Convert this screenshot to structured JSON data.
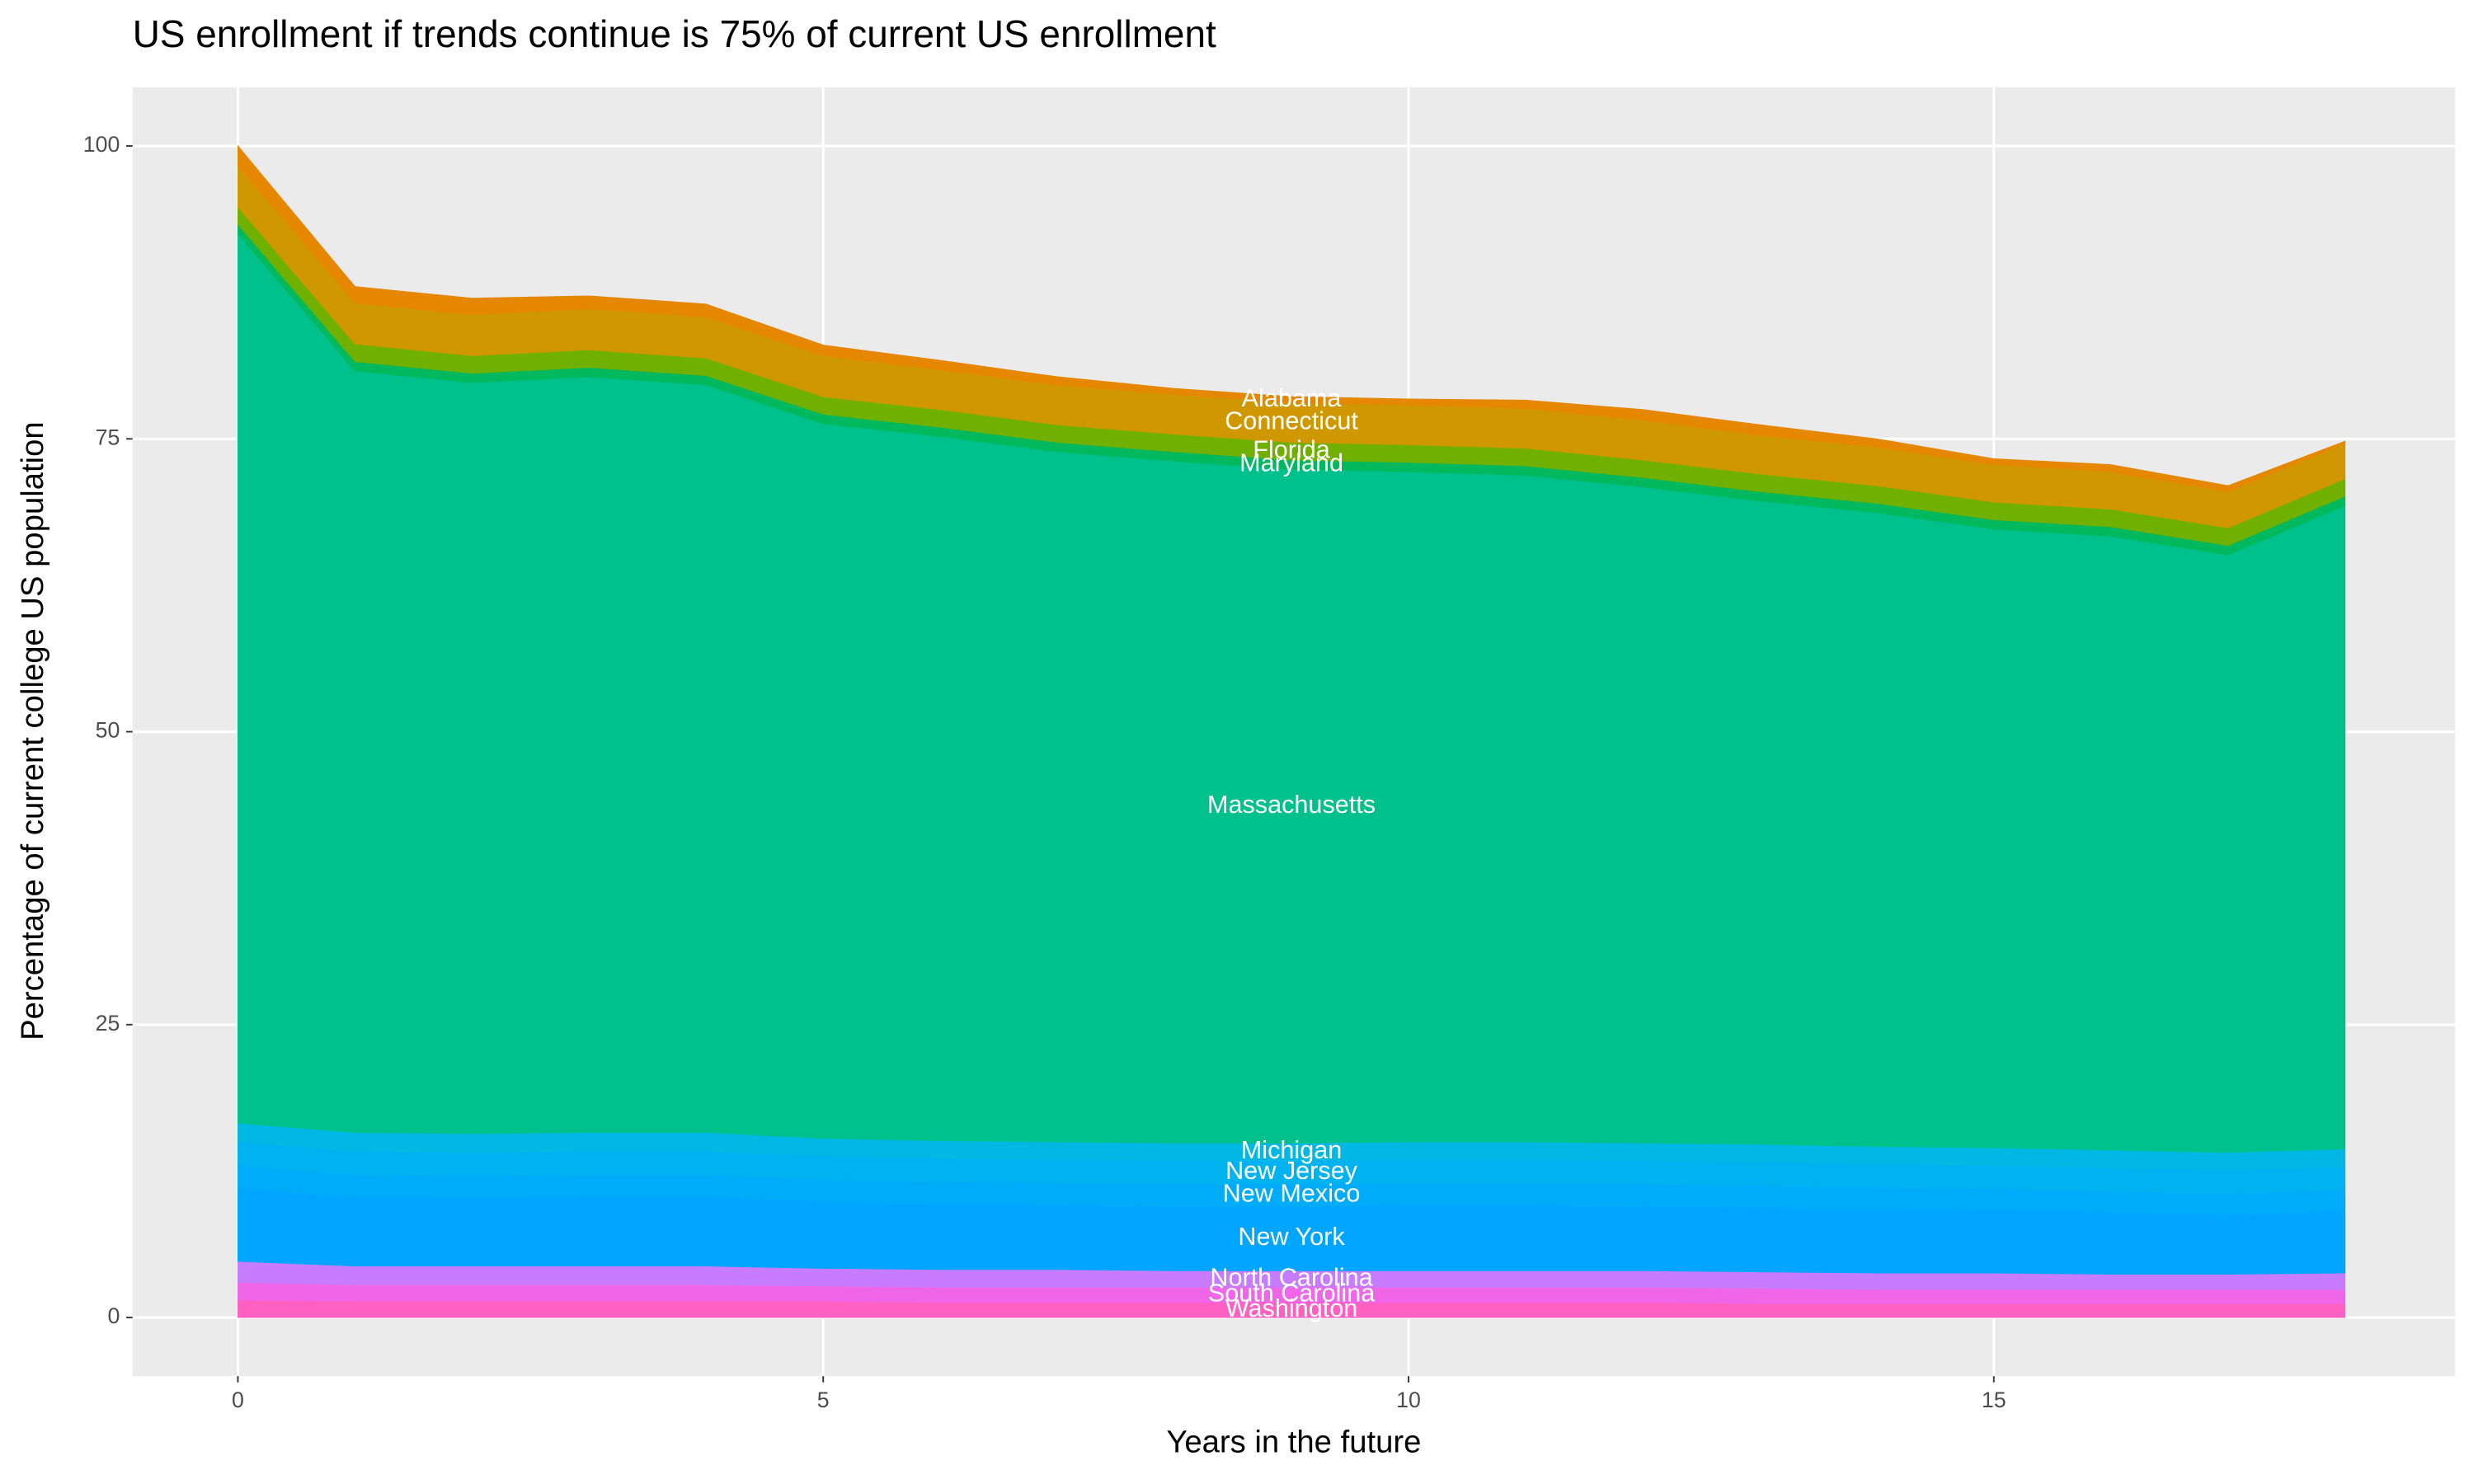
{
  "chart_data": {
    "type": "stacked-area",
    "title": "US enrollment if trends continue is 75% of current US enrollment",
    "x_label": "Years in the future",
    "y_label": "Percentage of current college US population",
    "x": [
      0,
      1,
      2,
      3,
      4,
      5,
      6,
      7,
      8,
      9,
      10,
      11,
      12,
      13,
      14,
      15,
      16,
      17,
      18
    ],
    "xlim": [
      -0.9,
      18.94
    ],
    "xticks": [
      0,
      5,
      10,
      15
    ],
    "ylim": [
      -5,
      105
    ],
    "yticks": [
      0,
      25,
      50,
      75,
      100
    ],
    "grid": true,
    "series": [
      {
        "name": "Washington",
        "color": "#ff61c3",
        "values": [
          1.5,
          1.4,
          1.4,
          1.4,
          1.4,
          1.4,
          1.3,
          1.3,
          1.3,
          1.3,
          1.3,
          1.3,
          1.3,
          1.2,
          1.2,
          1.2,
          1.2,
          1.2,
          1.2
        ]
      },
      {
        "name": "South Carolina",
        "color": "#f066e8",
        "values": [
          1.5,
          1.4,
          1.4,
          1.4,
          1.4,
          1.3,
          1.3,
          1.3,
          1.3,
          1.3,
          1.3,
          1.3,
          1.3,
          1.3,
          1.2,
          1.2,
          1.2,
          1.2,
          1.2
        ]
      },
      {
        "name": "North Carolina",
        "color": "#c77cff",
        "values": [
          1.8,
          1.6,
          1.6,
          1.6,
          1.6,
          1.5,
          1.5,
          1.5,
          1.4,
          1.4,
          1.4,
          1.4,
          1.4,
          1.4,
          1.4,
          1.4,
          1.3,
          1.3,
          1.4
        ]
      },
      {
        "name": "New York",
        "color": "#00a5ff",
        "values": [
          6.2,
          5.9,
          5.8,
          5.9,
          5.9,
          5.7,
          5.6,
          5.5,
          5.5,
          5.5,
          5.6,
          5.6,
          5.5,
          5.5,
          5.5,
          5.4,
          5.3,
          5.1,
          5.3
        ]
      },
      {
        "name": "New Mexico",
        "color": "#00acfa",
        "values": [
          2.0,
          1.9,
          1.9,
          1.9,
          1.9,
          1.9,
          1.9,
          1.9,
          1.9,
          1.9,
          1.9,
          1.9,
          1.9,
          1.9,
          1.8,
          1.8,
          1.8,
          1.8,
          1.8
        ]
      },
      {
        "name": "New Jersey",
        "color": "#00b2f0",
        "values": [
          2.0,
          2.0,
          2.0,
          2.0,
          2.0,
          2.0,
          2.0,
          2.0,
          2.0,
          2.0,
          2.0,
          2.0,
          2.0,
          2.0,
          2.0,
          2.0,
          2.0,
          2.0,
          2.0
        ]
      },
      {
        "name": "Michigan",
        "color": "#00b8e3",
        "values": [
          1.6,
          1.6,
          1.6,
          1.6,
          1.6,
          1.5,
          1.5,
          1.5,
          1.5,
          1.5,
          1.5,
          1.5,
          1.5,
          1.5,
          1.5,
          1.5,
          1.5,
          1.5,
          1.5
        ]
      },
      {
        "name": "Massachusetts",
        "color": "#00c08b",
        "values": [
          75.9,
          65.0,
          64.1,
          64.5,
          63.8,
          61.0,
          60.1,
          58.9,
          58.2,
          57.5,
          57.2,
          56.9,
          56.0,
          54.9,
          54.1,
          52.8,
          52.4,
          51.0,
          54.9
        ]
      },
      {
        "name": "Maryland",
        "color": "#00b85e",
        "values": [
          0.8,
          0.8,
          0.8,
          0.8,
          0.8,
          0.8,
          0.8,
          0.8,
          0.8,
          0.8,
          0.8,
          0.8,
          0.8,
          0.8,
          0.8,
          0.8,
          0.8,
          0.8,
          0.8
        ]
      },
      {
        "name": "Florida",
        "color": "#6fb000",
        "values": [
          1.5,
          1.5,
          1.5,
          1.5,
          1.5,
          1.5,
          1.5,
          1.5,
          1.5,
          1.5,
          1.5,
          1.5,
          1.5,
          1.5,
          1.5,
          1.5,
          1.5,
          1.5,
          1.5
        ]
      },
      {
        "name": "Connecticut",
        "color": "#cf9800",
        "values": [
          3.5,
          3.5,
          3.5,
          3.5,
          3.5,
          3.5,
          3.4,
          3.4,
          3.4,
          3.4,
          3.4,
          3.4,
          3.4,
          3.3,
          3.3,
          3.2,
          3.2,
          3.1,
          3.0
        ]
      },
      {
        "name": "Alabama",
        "color": "#e58700",
        "values": [
          1.7,
          1.4,
          1.4,
          1.1,
          1.1,
          0.9,
          0.8,
          0.7,
          0.5,
          0.5,
          0.5,
          0.7,
          0.9,
          0.9,
          0.7,
          0.5,
          0.6,
          0.5,
          0.2
        ]
      }
    ]
  }
}
